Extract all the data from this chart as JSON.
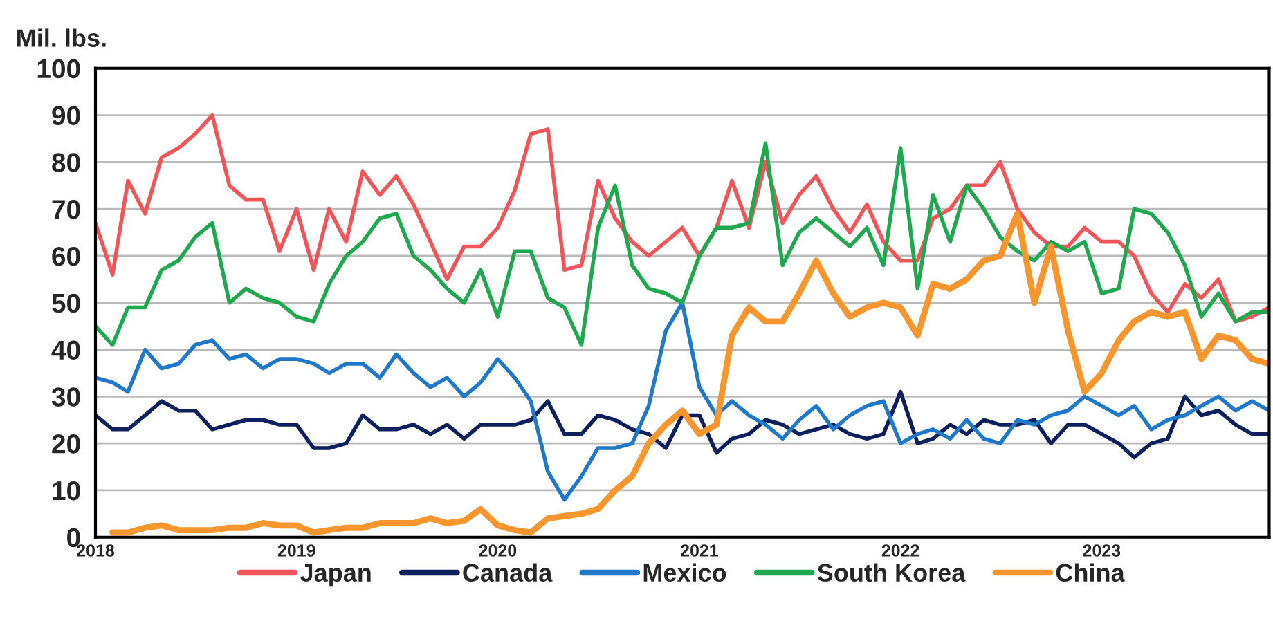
{
  "chart_data": {
    "type": "line",
    "ylabel": "Mil. lbs.",
    "x": [
      "2018-01",
      "2018-02",
      "2018-03",
      "2018-04",
      "2018-05",
      "2018-06",
      "2018-07",
      "2018-08",
      "2018-09",
      "2018-10",
      "2018-11",
      "2018-12",
      "2019-01",
      "2019-02",
      "2019-03",
      "2019-04",
      "2019-05",
      "2019-06",
      "2019-07",
      "2019-08",
      "2019-09",
      "2019-10",
      "2019-11",
      "2019-12",
      "2020-01",
      "2020-02",
      "2020-03",
      "2020-04",
      "2020-05",
      "2020-06",
      "2020-07",
      "2020-08",
      "2020-09",
      "2020-10",
      "2020-11",
      "2020-12",
      "2021-01",
      "2021-02",
      "2021-03",
      "2021-04",
      "2021-05",
      "2021-06",
      "2021-07",
      "2021-08",
      "2021-09",
      "2021-10",
      "2021-11",
      "2021-12",
      "2022-01",
      "2022-02",
      "2022-03",
      "2022-04",
      "2022-05",
      "2022-06",
      "2022-07",
      "2022-08",
      "2022-09",
      "2022-10",
      "2022-11",
      "2022-12",
      "2023-01",
      "2023-02",
      "2023-03",
      "2023-04",
      "2023-05",
      "2023-06",
      "2023-07",
      "2023-08",
      "2023-09",
      "2023-10",
      "2023-11"
    ],
    "series": [
      {
        "name": "Japan",
        "color": "#f0555a",
        "values": [
          67,
          56,
          76,
          69,
          81,
          83,
          86,
          90,
          75,
          72,
          72,
          61,
          70,
          57,
          70,
          63,
          78,
          73,
          77,
          71,
          63,
          55,
          62,
          62,
          66,
          74,
          86,
          87,
          57,
          58,
          76,
          68,
          63,
          60,
          63,
          66,
          60,
          66,
          76,
          66,
          80,
          67,
          73,
          77,
          70,
          65,
          71,
          63,
          59,
          59,
          68,
          70,
          75,
          75,
          80,
          70,
          65,
          62,
          62,
          66,
          63,
          63,
          60,
          52,
          48,
          54,
          51,
          55,
          46,
          47,
          49
        ]
      },
      {
        "name": "Canada",
        "color": "#0d1f5c",
        "values": [
          26,
          23,
          23,
          26,
          29,
          27,
          27,
          23,
          24,
          25,
          25,
          24,
          24,
          19,
          19,
          20,
          26,
          23,
          23,
          24,
          22,
          24,
          21,
          24,
          24,
          24,
          25,
          29,
          22,
          22,
          26,
          25,
          23,
          22,
          19,
          26,
          26,
          18,
          21,
          22,
          25,
          24,
          22,
          23,
          24,
          22,
          21,
          22,
          31,
          20,
          21,
          24,
          22,
          25,
          24,
          24,
          25,
          20,
          24,
          24,
          22,
          20,
          17,
          20,
          21,
          30,
          26,
          27,
          24,
          22,
          22
        ]
      },
      {
        "name": "Mexico",
        "color": "#1f78c8",
        "values": [
          34,
          33,
          31,
          40,
          36,
          37,
          41,
          42,
          38,
          39,
          36,
          38,
          38,
          37,
          35,
          37,
          37,
          34,
          39,
          35,
          32,
          34,
          30,
          33,
          38,
          34,
          29,
          14,
          8,
          13,
          19,
          19,
          20,
          28,
          44,
          50,
          32,
          26,
          29,
          26,
          24,
          21,
          25,
          28,
          23,
          26,
          28,
          29,
          20,
          22,
          23,
          21,
          25,
          21,
          20,
          25,
          24,
          26,
          27,
          30,
          28,
          26,
          28,
          23,
          25,
          26,
          28,
          30,
          27,
          29,
          27
        ]
      },
      {
        "name": "South Korea",
        "color": "#1fa84f",
        "values": [
          45,
          41,
          49,
          49,
          57,
          59,
          64,
          67,
          50,
          53,
          51,
          50,
          47,
          46,
          54,
          60,
          63,
          68,
          69,
          60,
          57,
          53,
          50,
          57,
          47,
          61,
          61,
          51,
          49,
          41,
          66,
          75,
          58,
          53,
          52,
          50,
          60,
          66,
          66,
          67,
          84,
          58,
          65,
          68,
          65,
          62,
          66,
          58,
          83,
          53,
          73,
          63,
          75,
          70,
          64,
          61,
          59,
          63,
          61,
          63,
          52,
          53,
          70,
          69,
          65,
          58,
          47,
          52,
          46,
          48,
          48
        ]
      },
      {
        "name": "China",
        "color": "#f7962e",
        "values": [
          null,
          1,
          1,
          2,
          2.5,
          1.5,
          1.5,
          1.5,
          2,
          2,
          3,
          2.5,
          2.5,
          1,
          1.5,
          2,
          2,
          3,
          3,
          3,
          4,
          3,
          3.5,
          6,
          2.5,
          1.5,
          1,
          4,
          4.5,
          5,
          6,
          10,
          13,
          20,
          24,
          27,
          22,
          24,
          43,
          49,
          46,
          46,
          52,
          59,
          52,
          47,
          49,
          50,
          49,
          43,
          54,
          53,
          55,
          59,
          60,
          69,
          50,
          62,
          44,
          31,
          35,
          42,
          46,
          48,
          47,
          48,
          38,
          43,
          42,
          38,
          37
        ]
      }
    ],
    "xlim": [
      "2018-01",
      "2023-11"
    ],
    "xticks": [
      "2018",
      "2019",
      "2020",
      "2021",
      "2022",
      "2023"
    ],
    "ylim": [
      0,
      100
    ],
    "yticks": [
      0,
      10,
      20,
      30,
      40,
      50,
      60,
      70,
      80,
      90,
      100
    ],
    "grid": "y",
    "legend": "bottom",
    "marker": "none",
    "line_style": "solid"
  }
}
